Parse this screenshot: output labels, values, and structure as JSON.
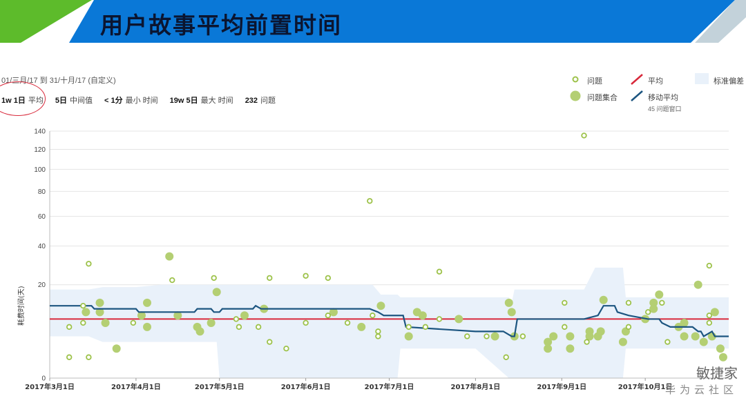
{
  "slide": {
    "title": "用户故事平均前置时间"
  },
  "header": {
    "date_range": "01/三月/17 到 31/十月/17 (自定义)",
    "stats": [
      {
        "value": "1w 1日",
        "label": "平均"
      },
      {
        "value": "5日",
        "label": "中间值"
      },
      {
        "value": "< 1分",
        "label": "最小 时间"
      },
      {
        "value": "19w 5日",
        "label": "最大 时间"
      },
      {
        "value": "232",
        "label": "问题"
      }
    ]
  },
  "legend": {
    "issue": "问题",
    "issue_cluster": "问题集合",
    "average": "平均",
    "rolling_average": "移动平均",
    "rolling_window": "45 问题窗口",
    "std_dev": "标准偏差"
  },
  "watermark": {
    "line1": "敏捷家",
    "line2": "华为云社区"
  },
  "colors": {
    "banner_blue": "#0a78d7",
    "banner_green": "#5dbb2b",
    "dot": "#9dc24a",
    "average": "#d8283a",
    "rolling": "#1c5580",
    "band": "#e9f1fa"
  },
  "chart_data": {
    "type": "scatter",
    "ylabel": "耗费时间(天)",
    "y_ticks": [
      0,
      20,
      40,
      60,
      80,
      100,
      120,
      140
    ],
    "ylim": [
      0,
      140
    ],
    "x_ticks": [
      "2017年3月1日",
      "2017年4月1日",
      "2017年5月1日",
      "2017年6月1日",
      "2017年7月1日",
      "2017年8月1日",
      "2017年9月1日",
      "2017年10月1日"
    ],
    "xlim": [
      "2017-03-01",
      "2017-10-31"
    ],
    "average": 8,
    "issues": [
      [
        "2017-03-08",
        1
      ],
      [
        "2017-03-08",
        6
      ],
      [
        "2017-03-13",
        12
      ],
      [
        "2017-03-13",
        7
      ],
      [
        "2017-03-15",
        30
      ],
      [
        "2017-03-15",
        1
      ],
      [
        "2017-03-31",
        7
      ],
      [
        "2017-04-14",
        22
      ],
      [
        "2017-04-29",
        23
      ],
      [
        "2017-05-07",
        8
      ],
      [
        "2017-05-08",
        6
      ],
      [
        "2017-05-15",
        6
      ],
      [
        "2017-05-19",
        23
      ],
      [
        "2017-05-19",
        3
      ],
      [
        "2017-05-25",
        2
      ],
      [
        "2017-06-01",
        24
      ],
      [
        "2017-06-01",
        7
      ],
      [
        "2017-06-09",
        23
      ],
      [
        "2017-06-09",
        9
      ],
      [
        "2017-06-16",
        7
      ],
      [
        "2017-06-24",
        72
      ],
      [
        "2017-06-25",
        9
      ],
      [
        "2017-06-27",
        5
      ],
      [
        "2017-06-27",
        4
      ],
      [
        "2017-07-08",
        6
      ],
      [
        "2017-07-14",
        6
      ],
      [
        "2017-07-19",
        8
      ],
      [
        "2017-07-19",
        26
      ],
      [
        "2017-07-29",
        4
      ],
      [
        "2017-08-05",
        4
      ],
      [
        "2017-08-12",
        1
      ],
      [
        "2017-08-18",
        4
      ],
      [
        "2017-09-02",
        13
      ],
      [
        "2017-09-02",
        6
      ],
      [
        "2017-09-09",
        135
      ],
      [
        "2017-09-10",
        3
      ],
      [
        "2017-09-25",
        13
      ],
      [
        "2017-09-25",
        6
      ],
      [
        "2017-10-02",
        10
      ],
      [
        "2017-10-07",
        13
      ],
      [
        "2017-10-09",
        3
      ],
      [
        "2017-10-24",
        29
      ],
      [
        "2017-10-24",
        9
      ],
      [
        "2017-10-24",
        7
      ]
    ],
    "clusters": [
      [
        "2017-03-14",
        10
      ],
      [
        "2017-03-19",
        13
      ],
      [
        "2017-03-19",
        10
      ],
      [
        "2017-03-21",
        7
      ],
      [
        "2017-03-25",
        2
      ],
      [
        "2017-04-03",
        9
      ],
      [
        "2017-04-05",
        13
      ],
      [
        "2017-04-05",
        6
      ],
      [
        "2017-04-13",
        34
      ],
      [
        "2017-04-16",
        9
      ],
      [
        "2017-04-23",
        6
      ],
      [
        "2017-04-24",
        5
      ],
      [
        "2017-04-28",
        7
      ],
      [
        "2017-04-30",
        17
      ],
      [
        "2017-05-10",
        9
      ],
      [
        "2017-05-17",
        11
      ],
      [
        "2017-06-11",
        10
      ],
      [
        "2017-06-21",
        6
      ],
      [
        "2017-06-28",
        12
      ],
      [
        "2017-07-08",
        4
      ],
      [
        "2017-07-11",
        10
      ],
      [
        "2017-07-13",
        9
      ],
      [
        "2017-07-26",
        8
      ],
      [
        "2017-08-08",
        4
      ],
      [
        "2017-08-13",
        13
      ],
      [
        "2017-08-14",
        10
      ],
      [
        "2017-08-15",
        4
      ],
      [
        "2017-08-27",
        3
      ],
      [
        "2017-08-27",
        2
      ],
      [
        "2017-08-29",
        4
      ],
      [
        "2017-09-04",
        4
      ],
      [
        "2017-09-04",
        2
      ],
      [
        "2017-09-11",
        4
      ],
      [
        "2017-09-11",
        5
      ],
      [
        "2017-09-14",
        4
      ],
      [
        "2017-09-15",
        5
      ],
      [
        "2017-09-16",
        14
      ],
      [
        "2017-09-23",
        3
      ],
      [
        "2017-09-24",
        5
      ],
      [
        "2017-10-01",
        8
      ],
      [
        "2017-10-04",
        13
      ],
      [
        "2017-10-04",
        11
      ],
      [
        "2017-10-06",
        16
      ],
      [
        "2017-10-13",
        6
      ],
      [
        "2017-10-15",
        4
      ],
      [
        "2017-10-15",
        7
      ],
      [
        "2017-10-19",
        4
      ],
      [
        "2017-10-20",
        20
      ],
      [
        "2017-10-22",
        3
      ],
      [
        "2017-10-25",
        4
      ],
      [
        "2017-10-26",
        10
      ],
      [
        "2017-10-28",
        2
      ],
      [
        "2017-10-29",
        1
      ]
    ],
    "rolling": [
      [
        "2017-03-01",
        12
      ],
      [
        "2017-03-16",
        12
      ],
      [
        "2017-03-17",
        11
      ],
      [
        "2017-04-01",
        11
      ],
      [
        "2017-04-02",
        10
      ],
      [
        "2017-04-15",
        10
      ],
      [
        "2017-04-16",
        10
      ],
      [
        "2017-04-22",
        10
      ],
      [
        "2017-04-23",
        11
      ],
      [
        "2017-04-28",
        11
      ],
      [
        "2017-04-29",
        10
      ],
      [
        "2017-05-01",
        10
      ],
      [
        "2017-05-02",
        11
      ],
      [
        "2017-05-13",
        11
      ],
      [
        "2017-05-14",
        12
      ],
      [
        "2017-05-16",
        11
      ],
      [
        "2017-06-12",
        11
      ],
      [
        "2017-06-24",
        11
      ],
      [
        "2017-06-27",
        10
      ],
      [
        "2017-06-29",
        9
      ],
      [
        "2017-07-06",
        9
      ],
      [
        "2017-07-07",
        6
      ],
      [
        "2017-08-01",
        5
      ],
      [
        "2017-08-11",
        5
      ],
      [
        "2017-08-14",
        4
      ],
      [
        "2017-08-15",
        4
      ],
      [
        "2017-08-16",
        8
      ],
      [
        "2017-09-09",
        8
      ],
      [
        "2017-09-14",
        9
      ],
      [
        "2017-09-16",
        12
      ],
      [
        "2017-09-20",
        12
      ],
      [
        "2017-09-21",
        10
      ],
      [
        "2017-09-25",
        9
      ],
      [
        "2017-10-02",
        8
      ],
      [
        "2017-10-06",
        8
      ],
      [
        "2017-10-07",
        7
      ],
      [
        "2017-10-10",
        6
      ],
      [
        "2017-10-18",
        6
      ],
      [
        "2017-10-20",
        5
      ],
      [
        "2017-10-21",
        5
      ],
      [
        "2017-10-22",
        4
      ],
      [
        "2017-10-25",
        5
      ],
      [
        "2017-10-26",
        4
      ],
      [
        "2017-10-31",
        4
      ]
    ],
    "std_band": [
      [
        "2017-03-01",
        18,
        4
      ],
      [
        "2017-03-15",
        18,
        4
      ],
      [
        "2017-03-20",
        19,
        3
      ],
      [
        "2017-04-01",
        19,
        3
      ],
      [
        "2017-04-10",
        20,
        3
      ],
      [
        "2017-04-30",
        20,
        3
      ],
      [
        "2017-05-01",
        20,
        0
      ],
      [
        "2017-05-20",
        20,
        0
      ],
      [
        "2017-06-01",
        20,
        0
      ],
      [
        "2017-06-25",
        20,
        0
      ],
      [
        "2017-06-28",
        16,
        0
      ],
      [
        "2017-07-04",
        16,
        0
      ],
      [
        "2017-07-05",
        15,
        2
      ],
      [
        "2017-08-01",
        15,
        2
      ],
      [
        "2017-08-13",
        15,
        0
      ],
      [
        "2017-08-14",
        13,
        0
      ],
      [
        "2017-08-15",
        18,
        0
      ],
      [
        "2017-09-01",
        18,
        0
      ],
      [
        "2017-09-09",
        18,
        0
      ],
      [
        "2017-09-13",
        28,
        0
      ],
      [
        "2017-09-23",
        28,
        0
      ],
      [
        "2017-09-24",
        15,
        2
      ],
      [
        "2017-10-31",
        15,
        2
      ]
    ]
  }
}
